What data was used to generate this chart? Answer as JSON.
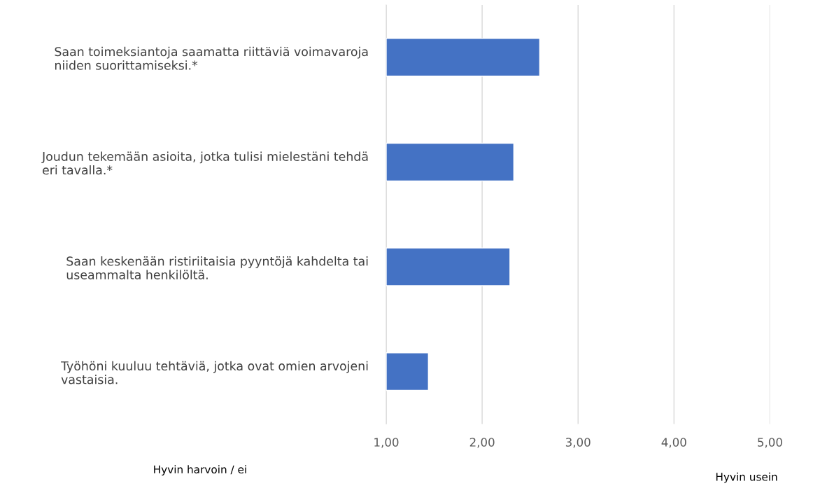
{
  "chart_data": {
    "type": "bar",
    "orientation": "horizontal",
    "categories": [
      "Saan toimeksiantoja saamatta riittäviä voimavaroja niiden suorittamiseksi.*",
      "Joudun tekemään asioita, jotka tulisi mielestäni tehdä eri tavalla.*",
      "Saan keskenään ristiriitaisia pyyntöjä kahdelta tai useammalta henkilöltä.",
      "Työhöni kuuluu tehtäviä, jotka ovat omien arvojeni vastaisia."
    ],
    "values": [
      2.6,
      2.33,
      2.29,
      1.44
    ],
    "color": "#4472c4",
    "xlim": [
      1,
      5
    ],
    "xticks": [
      {
        "value": 1,
        "label": "1,00"
      },
      {
        "value": 2,
        "label": "2,00"
      },
      {
        "value": 3,
        "label": "3,00"
      },
      {
        "value": 4,
        "label": "4,00"
      },
      {
        "value": 5,
        "label": "5,00"
      }
    ],
    "grid": "x",
    "annotations": [
      "Hyvin harvoin / ei",
      "Hyvin usein"
    ]
  }
}
